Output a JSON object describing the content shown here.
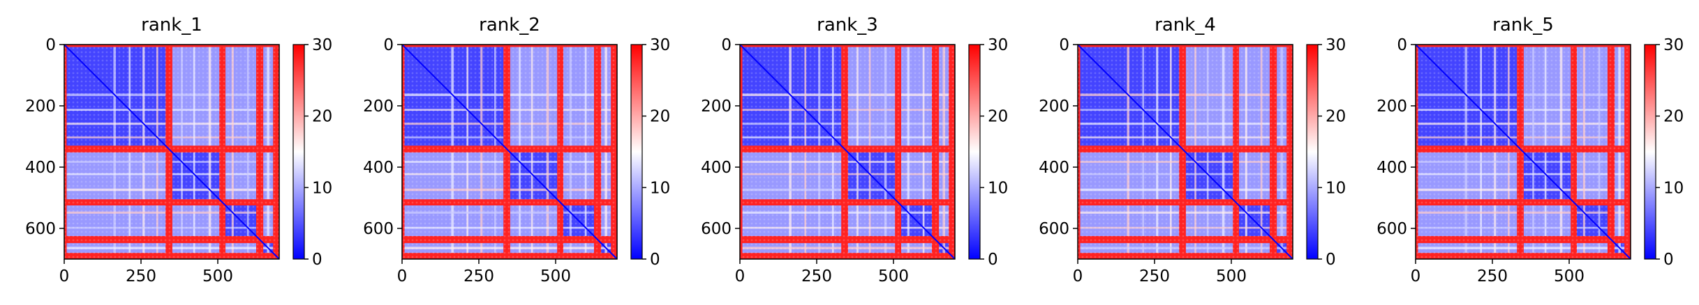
{
  "chart_data": {
    "type": "heatmap",
    "colormap": {
      "name": "bwr",
      "low": "#0000ff",
      "mid": "#ffffff",
      "high": "#ff0000"
    },
    "panels": [
      {
        "title": "rank_1"
      },
      {
        "title": "rank_2"
      },
      {
        "title": "rank_3"
      },
      {
        "title": "rank_4"
      },
      {
        "title": "rank_5"
      }
    ],
    "matrix_size": 700,
    "xlim": [
      0,
      700
    ],
    "ylim": [
      700,
      0
    ],
    "xticks": [
      0,
      250,
      500
    ],
    "yticks": [
      0,
      200,
      400,
      600
    ],
    "colorbar": {
      "range": [
        0,
        30
      ],
      "ticks": [
        0,
        10,
        20,
        30
      ]
    },
    "structure": {
      "high_value_row_col_bands": [
        [
          0,
          8
        ],
        [
          330,
          352
        ],
        [
          505,
          525
        ],
        [
          625,
          648
        ],
        [
          680,
          700
        ]
      ],
      "medium_stripes": [
        [
          160,
          168
        ],
        [
          210,
          216
        ],
        [
          255,
          262
        ],
        [
          300,
          306
        ],
        [
          380,
          386
        ],
        [
          420,
          426
        ],
        [
          470,
          478
        ],
        [
          545,
          552
        ],
        [
          595,
          601
        ],
        [
          660,
          668
        ]
      ],
      "diagonal_blocks": [
        [
          0,
          330
        ],
        [
          352,
          505
        ],
        [
          525,
          625
        ],
        [
          648,
          700
        ]
      ],
      "block_interior_value": 4,
      "off_block_value": 9,
      "band_value": 28,
      "diagonal_value": 0
    }
  }
}
